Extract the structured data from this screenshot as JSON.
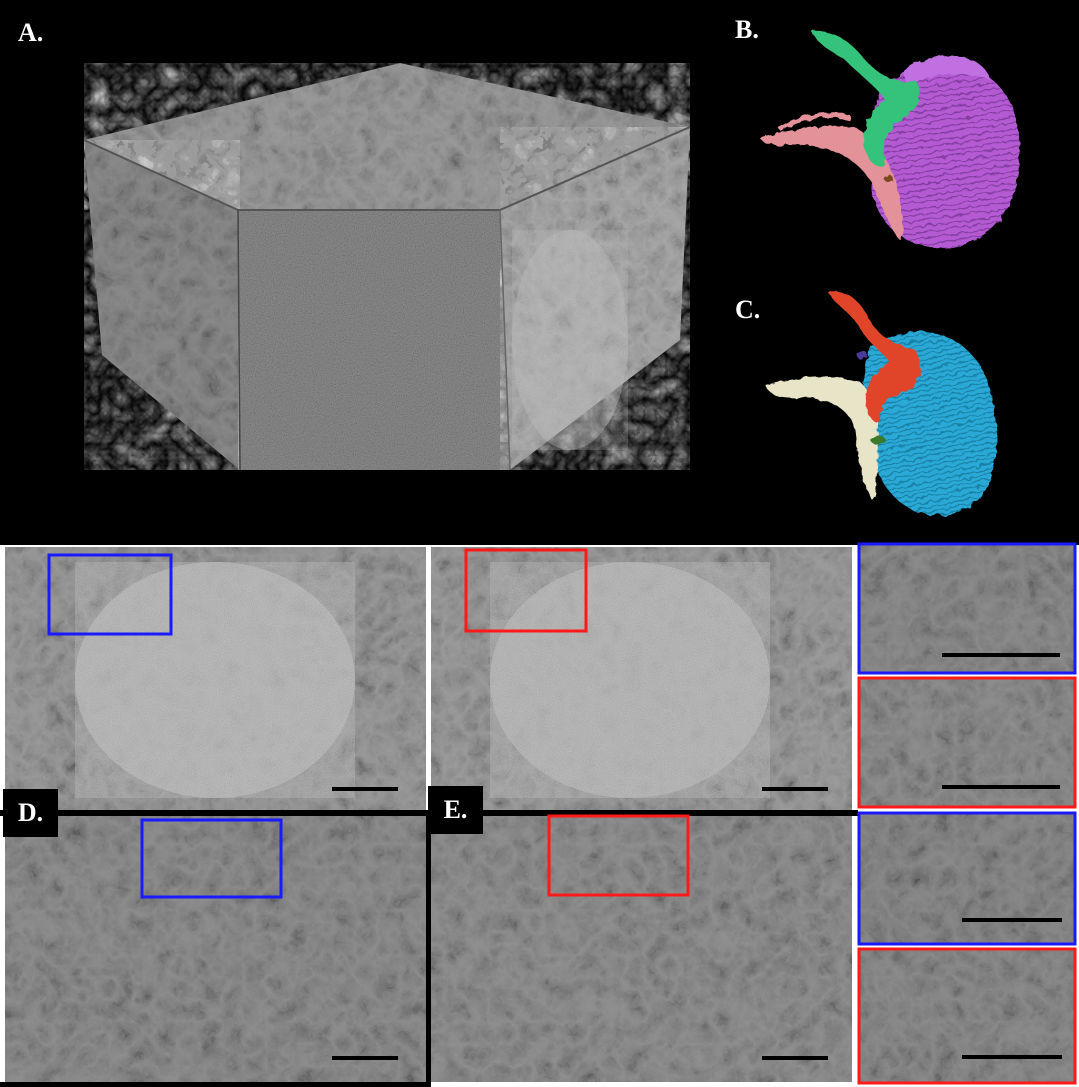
{
  "figure": {
    "panel_labels": {
      "a": "A.",
      "b": "B.",
      "c": "C.",
      "d": "D.",
      "e": "E."
    },
    "colors": {
      "background": "#000000",
      "em_gray": "#8c8c8c",
      "nucleus_purple": "#b45ad2",
      "nucleus_blue": "#2aa8d6",
      "green_process": "#34c27a",
      "pink_process": "#e4929a",
      "red_process": "#e0452a",
      "cream_process": "#e8e4c8",
      "highlight_blue": "#1a1aff",
      "highlight_red": "#ff1a1a",
      "scale_bar": "#000000"
    },
    "icons": {
      "volume": "em-volume-cube",
      "render_b": "3d-reconstruction-purple-nucleus",
      "render_c": "3d-reconstruction-blue-nucleus"
    }
  }
}
